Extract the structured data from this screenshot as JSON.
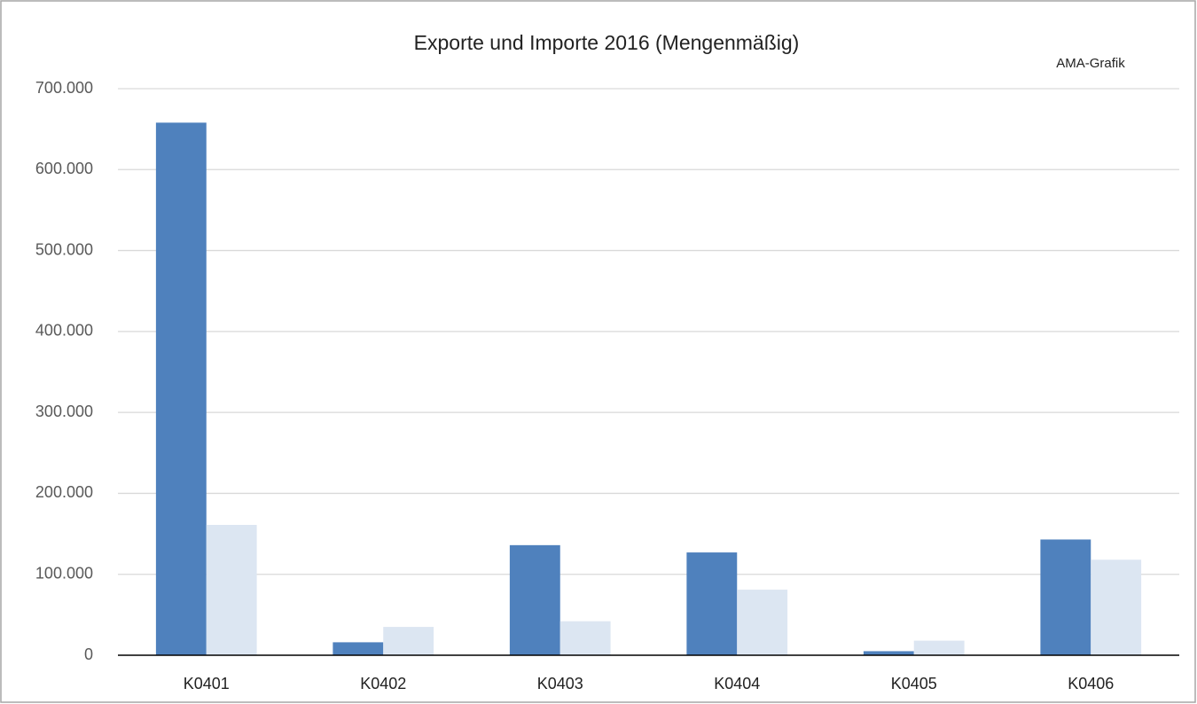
{
  "chart_data": {
    "type": "bar",
    "title": "Exporte und Importe 2016 (Mengenmäßig)",
    "annotation": "AMA-Grafik",
    "categories": [
      "K0401",
      "K0402",
      "K0403",
      "K0404",
      "K0405",
      "K0406"
    ],
    "series": [
      {
        "color": "#4f81bd",
        "values": [
          658000,
          16000,
          136000,
          127000,
          5000,
          143000
        ]
      },
      {
        "color": "#dce6f2",
        "values": [
          161000,
          35000,
          42000,
          81000,
          18000,
          118000
        ]
      }
    ],
    "ylim": [
      0,
      700000
    ],
    "yticks": [
      0,
      {
        "value": 100000,
        "label": "100.000"
      },
      {
        "value": 200000,
        "label": "200.000"
      },
      {
        "value": 300000,
        "label": "300.000"
      },
      {
        "value": 400000,
        "label": "400.000"
      },
      {
        "value": 500000,
        "label": "500.000"
      },
      {
        "value": 600000,
        "label": "600.000"
      },
      {
        "value": 700000,
        "label": "700.000"
      }
    ],
    "grid": true
  }
}
